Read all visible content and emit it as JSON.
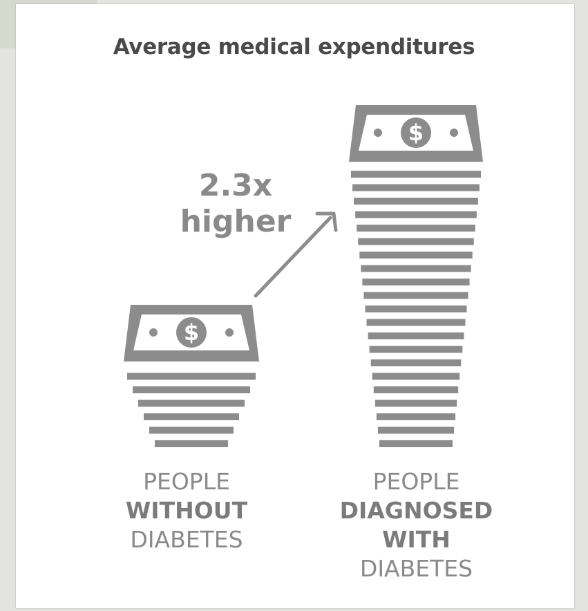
{
  "chart_data": {
    "type": "bar",
    "title": "Average medical expenditures",
    "categories": [
      "PEOPLE WITHOUT DIABETES",
      "PEOPLE DIAGNOSED WITH DIABETES"
    ],
    "values": [
      1,
      2.3
    ],
    "unit": "relative average medical expenditure (money stack height)",
    "annotation": "2.3x higher",
    "label_lines": [
      [
        {
          "text": "PEOPLE",
          "bold": false
        },
        {
          "text": "WITHOUT",
          "bold": true
        },
        {
          "text": "DIABETES",
          "bold": false
        }
      ],
      [
        {
          "text": "PEOPLE",
          "bold": false
        },
        {
          "text": "DIAGNOSED",
          "bold": true
        },
        {
          "text": "WITH",
          "bold": true
        },
        {
          "text": "DIABETES",
          "bold": false
        }
      ]
    ]
  },
  "multiplier": {
    "value": "2.3x",
    "word": "higher"
  },
  "icons": {
    "bill": "dollar-bill-icon",
    "arrow": "arrow-up-right-icon"
  },
  "colors": {
    "ink": "#8c8c8c",
    "text": "#8a8a8a",
    "title": "#4a4a4a",
    "background": "#ffffff"
  }
}
